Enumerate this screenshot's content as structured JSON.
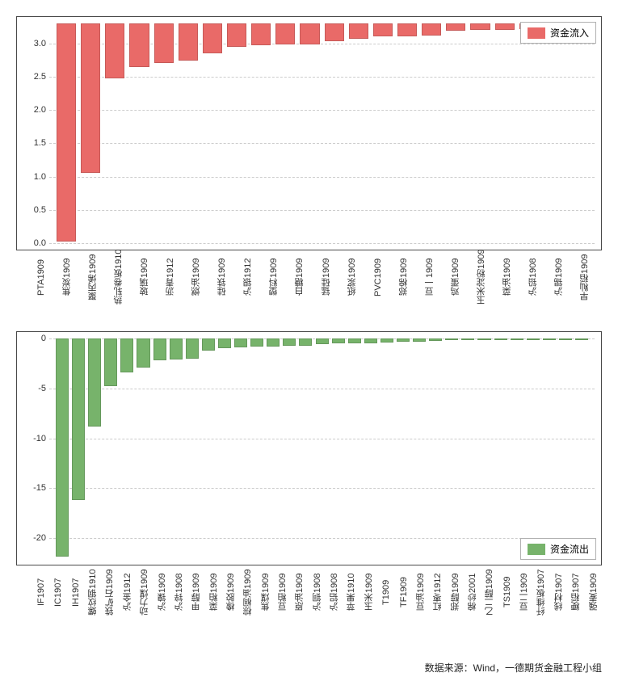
{
  "source_text": "数据来源：Wind，一德期货金融工程小组",
  "inflow_chart": {
    "type": "bar",
    "legend_label": "资金流入",
    "bar_color": "#e96a68",
    "grid_color": "#cccccc",
    "border_color": "#4a4a4a",
    "background_color": "#ffffff",
    "ylim": [
      0,
      3.3
    ],
    "yticks": [
      0.0,
      0.5,
      1.0,
      1.5,
      2.0,
      2.5,
      3.0
    ],
    "ytick_labels": [
      "0.0",
      "0.5",
      "1.0",
      "1.5",
      "2.0",
      "2.5",
      "3.0"
    ],
    "label_fontsize": 11,
    "bar_width": 0.8,
    "categories": [
      "PTA1909",
      "焦炭1909",
      "聚丙烯1909",
      "热轧卷板1910",
      "玻璃1909",
      "沥青1912",
      "燃油1909",
      "硅铁1909",
      "沪银1912",
      "塑料1909",
      "白糖1909",
      "锰硅1909",
      "纸浆1909",
      "PVC1909",
      "郑棉1909",
      "豆一1909",
      "鸡蛋1909",
      "玉米淀粉1909",
      "菜油1909",
      "沪铅1908",
      "沪锡1909",
      "早籼稻1909"
    ],
    "values": [
      3.28,
      2.25,
      0.82,
      0.66,
      0.6,
      0.56,
      0.45,
      0.35,
      0.33,
      0.32,
      0.32,
      0.27,
      0.23,
      0.2,
      0.19,
      0.18,
      0.11,
      0.1,
      0.1,
      0.09,
      0.07,
      0.04
    ]
  },
  "outflow_chart": {
    "type": "bar",
    "legend_label": "资金流出",
    "bar_color": "#77b36b",
    "grid_color": "#cccccc",
    "border_color": "#4a4a4a",
    "background_color": "#ffffff",
    "ylim": [
      -22,
      0
    ],
    "yticks": [
      -20,
      -15,
      -10,
      -5,
      0
    ],
    "ytick_labels": [
      "-20",
      "-15",
      "-10",
      "-5",
      "0"
    ],
    "label_fontsize": 11,
    "bar_width": 0.8,
    "categories": [
      "IF1907",
      "IC1907",
      "IH1907",
      "螺纹钢1910",
      "铁矿石1909",
      "沪金1912",
      "动力煤1909",
      "沪镍1909",
      "沪锌1908",
      "甲醇1909",
      "菜粕1909",
      "橡胶1909",
      "棕榈油1909",
      "焦煤1909",
      "豆粕1909",
      "原油1909",
      "沪铜1908",
      "沪铝1908",
      "苹果1910",
      "玉米1909",
      "T1909",
      "TF1909",
      "豆油1909",
      "红枣1912",
      "郑醇1909",
      "棉纱2001",
      "乙二醇1909",
      "TS1909",
      "豆二1909",
      "纤维板1907",
      "线材1907",
      "粳稻1907",
      "强麦1909"
    ],
    "values": [
      -21.8,
      -16.2,
      -8.8,
      -4.8,
      -3.4,
      -2.9,
      -2.2,
      -2.1,
      -2.0,
      -1.2,
      -1.0,
      -0.9,
      -0.8,
      -0.8,
      -0.7,
      -0.7,
      -0.6,
      -0.5,
      -0.5,
      -0.5,
      -0.4,
      -0.3,
      -0.3,
      -0.25,
      -0.2,
      -0.2,
      -0.15,
      -0.1,
      -0.1,
      -0.05,
      -0.05,
      -0.03,
      -0.02
    ]
  }
}
